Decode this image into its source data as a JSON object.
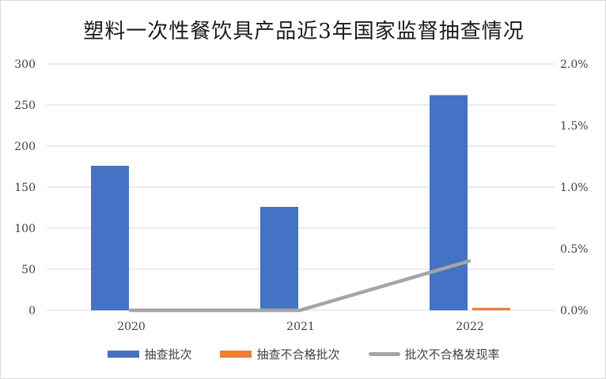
{
  "chart_data": {
    "type": "bar",
    "title": "塑料一次性餐饮具产品近3年国家监督抽查情况",
    "categories": [
      "2020",
      "2021",
      "2022"
    ],
    "series": [
      {
        "name": "抽查批次",
        "type": "bar",
        "axis": "left",
        "color": "#4472c4",
        "values": [
          176,
          126,
          262
        ]
      },
      {
        "name": "抽查不合格批次",
        "type": "bar",
        "axis": "left",
        "color": "#ed7d31",
        "values": [
          0,
          0,
          3
        ]
      },
      {
        "name": "批次不合格发现率",
        "type": "line",
        "axis": "right",
        "color": "#a5a5a5",
        "values": [
          0.0,
          0.0,
          0.4
        ]
      }
    ],
    "y_left": {
      "ticks": [
        "0",
        "50",
        "100",
        "150",
        "200",
        "250",
        "300"
      ],
      "min": 0,
      "max": 300
    },
    "y_right": {
      "ticks": [
        "0.0%",
        "0.5%",
        "1.0%",
        "1.5%",
        "2.0%"
      ],
      "min": 0,
      "max": 2.0
    },
    "grid": true,
    "legend_position": "bottom"
  }
}
